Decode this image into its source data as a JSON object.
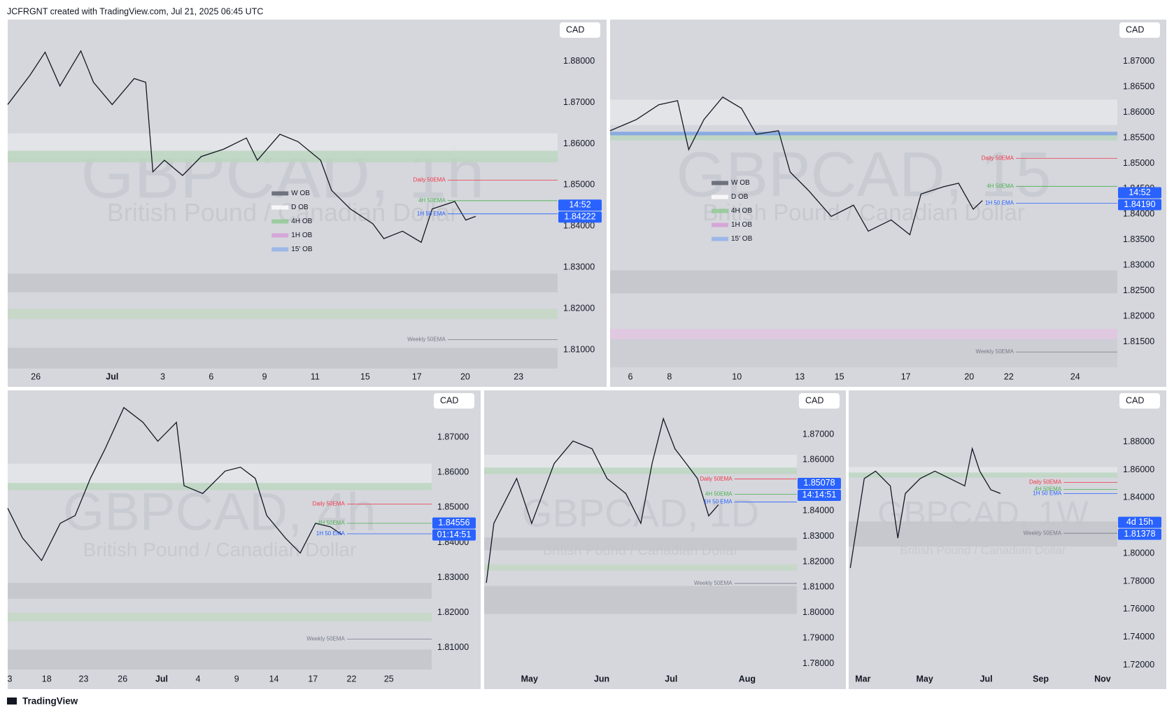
{
  "header": "JCFRGNT created with TradingView.com, Jul 21, 2025 06:45 UTC",
  "footer": "TradingView",
  "chart_data": [
    {
      "type": "line",
      "title": "GBPCAD, 1h",
      "subtitle": "British Pound / Canadian Dollar",
      "currency": "CAD",
      "xlim": [
        0,
        100
      ],
      "ylim": [
        1.8058,
        1.8901
      ],
      "xticks": [
        {
          "value": 5.1,
          "label": "26"
        },
        {
          "value": 19.0,
          "label": "Jul"
        },
        {
          "value": 28.2,
          "label": "3"
        },
        {
          "value": 37.0,
          "label": "6"
        },
        {
          "value": 46.7,
          "label": "9"
        },
        {
          "value": 55.9,
          "label": "11"
        },
        {
          "value": 65.0,
          "label": "15"
        },
        {
          "value": 74.4,
          "label": "17"
        },
        {
          "value": 83.2,
          "label": "20"
        },
        {
          "value": 92.9,
          "label": "23"
        }
      ],
      "yticks": [
        {
          "value": 1.81,
          "label": "1.81000"
        },
        {
          "value": 1.82,
          "label": "1.82000"
        },
        {
          "value": 1.83,
          "label": "1.83000"
        },
        {
          "value": 1.84,
          "label": "1.84000"
        },
        {
          "value": 1.85,
          "label": "1.85000"
        },
        {
          "value": 1.86,
          "label": "1.86000"
        },
        {
          "value": 1.87,
          "label": "1.87000"
        },
        {
          "value": 1.88,
          "label": "1.88000"
        }
      ],
      "series": [
        {
          "name": "GBPCAD",
          "color": "#131722",
          "x": [
            0,
            4.1,
            6.8,
            9.5,
            13.3,
            15.6,
            19.0,
            23.0,
            25.1,
            26.4,
            28.5,
            31.8,
            35.2,
            39.3,
            43.4,
            45.4,
            49.5,
            52.8,
            56.9,
            58.9,
            62.3,
            66.4,
            68.4,
            71.8,
            75.2,
            77.2,
            81.3,
            83.3,
            85.1
          ],
          "values": [
            1.8695,
            1.8767,
            1.8822,
            1.874,
            1.8825,
            1.8749,
            1.8695,
            1.8758,
            1.8749,
            1.8532,
            1.856,
            1.8523,
            1.8569,
            1.8587,
            1.8614,
            1.856,
            1.8623,
            1.8605,
            1.856,
            1.8487,
            1.8442,
            1.8406,
            1.837,
            1.8388,
            1.8361,
            1.8442,
            1.846,
            1.8415,
            1.8424
          ]
        }
      ],
      "zones": [
        {
          "from": 1.8565,
          "to": 1.8625,
          "color": "#e4e6ea"
        },
        {
          "from": 1.8555,
          "to": 1.8583,
          "color": "#bcd6bf"
        },
        {
          "from": 1.824,
          "to": 1.8285,
          "color": "#c3c5cb"
        },
        {
          "from": 1.8175,
          "to": 1.82,
          "color": "#c4d8c6"
        },
        {
          "from": 1.8055,
          "to": 1.8105,
          "color": "#c3c5cb"
        }
      ],
      "levels": [
        {
          "label": "Daily 50EMA",
          "value": 1.8512,
          "color": "#f23645"
        },
        {
          "label": "4H 50EMA",
          "value": 1.8462,
          "color": "#4caf50"
        },
        {
          "label": "1H 50 EMA",
          "value": 1.843,
          "color": "#2962ff"
        },
        {
          "label": "Weekly 50EMA",
          "value": 1.8125,
          "color": "#787b86"
        }
      ],
      "price_tag": {
        "value": 1.84222,
        "label": "1.84222"
      },
      "countdown": "14:52",
      "legend": [
        {
          "name": "W OB",
          "color": "#555a66"
        },
        {
          "name": "D OB",
          "color": "#ffffff"
        },
        {
          "name": "4H OB",
          "color": "#8cc98f"
        },
        {
          "name": "1H OB",
          "color": "#d69ad6"
        },
        {
          "name": "15' OB",
          "color": "#8fb0ea"
        }
      ]
    },
    {
      "type": "line",
      "title": "GBPCAD, 15",
      "subtitle": "British Pound / Canadian Dollar",
      "currency": "CAD",
      "xlim": [
        0,
        100
      ],
      "ylim": [
        1.81,
        1.8782
      ],
      "xticks": [
        {
          "value": 4.0,
          "label": "6"
        },
        {
          "value": 11.7,
          "label": "8"
        },
        {
          "value": 25.0,
          "label": "10"
        },
        {
          "value": 37.4,
          "label": "13"
        },
        {
          "value": 45.2,
          "label": "15"
        },
        {
          "value": 58.3,
          "label": "17"
        },
        {
          "value": 70.8,
          "label": "20"
        },
        {
          "value": 78.6,
          "label": "22"
        },
        {
          "value": 91.7,
          "label": "24"
        }
      ],
      "yticks": [
        {
          "value": 1.815,
          "label": "1.81500"
        },
        {
          "value": 1.82,
          "label": "1.82000"
        },
        {
          "value": 1.825,
          "label": "1.82500"
        },
        {
          "value": 1.83,
          "label": "1.83000"
        },
        {
          "value": 1.835,
          "label": "1.83500"
        },
        {
          "value": 1.84,
          "label": "1.84000"
        },
        {
          "value": 1.845,
          "label": "1.84500"
        },
        {
          "value": 1.85,
          "label": "1.85000"
        },
        {
          "value": 1.855,
          "label": "1.85500"
        },
        {
          "value": 1.86,
          "label": "1.86000"
        },
        {
          "value": 1.865,
          "label": "1.86500"
        },
        {
          "value": 1.87,
          "label": "1.87000"
        }
      ],
      "series": [
        {
          "name": "GBPCAD",
          "color": "#131722",
          "x": [
            0,
            5.2,
            9.6,
            13.3,
            15.5,
            18.5,
            22.2,
            25.9,
            28.8,
            33.2,
            35.5,
            39.1,
            43.6,
            48.0,
            50.9,
            55.4,
            59.1,
            61.3,
            65.7,
            68.7,
            71.6,
            73.4
          ],
          "values": [
            1.8564,
            1.8586,
            1.8615,
            1.8623,
            1.8527,
            1.8586,
            1.863,
            1.8608,
            1.8557,
            1.8564,
            1.8483,
            1.8447,
            1.8396,
            1.8418,
            1.8367,
            1.8389,
            1.836,
            1.844,
            1.8454,
            1.8461,
            1.841,
            1.8427
          ]
        }
      ],
      "zones": [
        {
          "from": 1.8575,
          "to": 1.8625,
          "color": "#e4e6ea"
        },
        {
          "from": 1.8545,
          "to": 1.856,
          "color": "#bcd6bf"
        },
        {
          "from": 1.8555,
          "to": 1.8562,
          "color": "#7fa3e6"
        },
        {
          "from": 1.8245,
          "to": 1.829,
          "color": "#c3c5cb"
        },
        {
          "from": 1.8155,
          "to": 1.8175,
          "color": "#e2c6e2"
        },
        {
          "from": 1.81,
          "to": 1.8155,
          "color": "#caccd2"
        }
      ],
      "levels": [
        {
          "label": "Daily 50EMA",
          "value": 1.851,
          "color": "#f23645"
        },
        {
          "label": "4H 50EMA",
          "value": 1.8455,
          "color": "#4caf50"
        },
        {
          "label": "1H 50 EMA",
          "value": 1.8422,
          "color": "#2962ff"
        },
        {
          "label": "Weekly 50EMA",
          "value": 1.813,
          "color": "#787b86"
        }
      ],
      "price_tag": {
        "value": 1.8419,
        "label": "1.84190"
      },
      "countdown": "14:52",
      "legend": [
        {
          "name": "W OB",
          "color": "#555a66"
        },
        {
          "name": "D OB",
          "color": "#ffffff"
        },
        {
          "name": "4H OB",
          "color": "#8cc98f"
        },
        {
          "name": "1H OB",
          "color": "#d69ad6"
        },
        {
          "name": "15' OB",
          "color": "#8fb0ea"
        }
      ]
    },
    {
      "type": "line",
      "title": "GBPCAD, 4h",
      "subtitle": "British Pound / Canadian Dollar",
      "currency": "CAD",
      "xlim": [
        0,
        100
      ],
      "ylim": [
        1.8038,
        1.8834
      ],
      "xticks": [
        {
          "value": 0.5,
          "label": "3"
        },
        {
          "value": 9.2,
          "label": "18"
        },
        {
          "value": 17.9,
          "label": "23"
        },
        {
          "value": 27.1,
          "label": "26"
        },
        {
          "value": 36.3,
          "label": "Jul"
        },
        {
          "value": 44.9,
          "label": "4"
        },
        {
          "value": 54.0,
          "label": "9"
        },
        {
          "value": 62.8,
          "label": "14"
        },
        {
          "value": 72.0,
          "label": "17"
        },
        {
          "value": 81.1,
          "label": "22"
        },
        {
          "value": 89.9,
          "label": "25"
        }
      ],
      "yticks": [
        {
          "value": 1.81,
          "label": "1.81000"
        },
        {
          "value": 1.82,
          "label": "1.82000"
        },
        {
          "value": 1.83,
          "label": "1.83000"
        },
        {
          "value": 1.84,
          "label": "1.84000"
        },
        {
          "value": 1.85,
          "label": "1.85000"
        },
        {
          "value": 1.86,
          "label": "1.86000"
        },
        {
          "value": 1.87,
          "label": "1.87000"
        }
      ],
      "series": [
        {
          "name": "GBPCAD",
          "color": "#131722",
          "x": [
            0,
            3.5,
            8.0,
            12.4,
            15.9,
            19.5,
            23.0,
            27.4,
            31.9,
            35.4,
            39.8,
            41.6,
            46.0,
            51.3,
            54.9,
            58.4,
            61.1,
            65.5,
            69.0,
            72.6,
            76.1,
            78.8
          ],
          "values": [
            1.8498,
            1.8413,
            1.8349,
            1.8455,
            1.8477,
            1.8583,
            1.8668,
            1.8785,
            1.8743,
            1.8689,
            1.8743,
            1.8562,
            1.854,
            1.8604,
            1.8615,
            1.8583,
            1.8477,
            1.8413,
            1.837,
            1.8455,
            1.8445,
            1.8423
          ]
        }
      ],
      "zones": [
        {
          "from": 1.8555,
          "to": 1.8625,
          "color": "#e4e6ea"
        },
        {
          "from": 1.855,
          "to": 1.857,
          "color": "#bcd6bf"
        },
        {
          "from": 1.824,
          "to": 1.8285,
          "color": "#c3c5cb"
        },
        {
          "from": 1.8175,
          "to": 1.82,
          "color": "#c4d8c6"
        },
        {
          "from": 1.8038,
          "to": 1.8095,
          "color": "#c3c5cb"
        }
      ],
      "levels": [
        {
          "label": "Daily 50EMA",
          "value": 1.851,
          "color": "#f23645"
        },
        {
          "label": "4H 50EMA",
          "value": 1.8455,
          "color": "#4caf50"
        },
        {
          "label": "1H 50 EMA",
          "value": 1.8425,
          "color": "#2962ff"
        },
        {
          "label": "Weekly 50EMA",
          "value": 1.8125,
          "color": "#787b86"
        }
      ],
      "price_tag": {
        "value": 1.84556,
        "label": "1.84556"
      },
      "countdown": "01:14:51"
    },
    {
      "type": "line",
      "title": "GBPCAD, 1D",
      "subtitle": "British Pound / Canadian Dollar",
      "currency": "CAD",
      "xlim": [
        0,
        100
      ],
      "ylim": [
        1.7777,
        1.8873
      ],
      "xticks": [
        {
          "value": 14.5,
          "label": "May"
        },
        {
          "value": 37.6,
          "label": "Jun"
        },
        {
          "value": 59.8,
          "label": "Jul"
        },
        {
          "value": 84.1,
          "label": "Aug"
        }
      ],
      "yticks": [
        {
          "value": 1.78,
          "label": "1.78000"
        },
        {
          "value": 1.79,
          "label": "1.79000"
        },
        {
          "value": 1.8,
          "label": "1.80000"
        },
        {
          "value": 1.81,
          "label": "1.81000"
        },
        {
          "value": 1.82,
          "label": "1.82000"
        },
        {
          "value": 1.83,
          "label": "1.83000"
        },
        {
          "value": 1.84,
          "label": "1.84000"
        },
        {
          "value": 1.85,
          "label": "1.85000"
        },
        {
          "value": 1.86,
          "label": "1.86000"
        },
        {
          "value": 1.87,
          "label": "1.87000"
        }
      ],
      "series": [
        {
          "name": "GBPCAD",
          "color": "#131722",
          "x": [
            0.7,
            3.1,
            10.4,
            15.2,
            22.4,
            28.4,
            34.5,
            39.3,
            45.3,
            50.1,
            53.7,
            57.3,
            61.0,
            64.6,
            68.2,
            71.8,
            74.9
          ],
          "values": [
            1.8117,
            1.8351,
            1.8527,
            1.8351,
            1.8586,
            1.8674,
            1.8644,
            1.8527,
            1.8468,
            1.8351,
            1.8586,
            1.8762,
            1.8644,
            1.8586,
            1.8527,
            1.838,
            1.8424
          ]
        }
      ],
      "zones": [
        {
          "from": 1.8555,
          "to": 1.862,
          "color": "#e4e6ea"
        },
        {
          "from": 1.8545,
          "to": 1.857,
          "color": "#bcd6bf"
        },
        {
          "from": 1.8245,
          "to": 1.8295,
          "color": "#c3c5cb"
        },
        {
          "from": 1.8165,
          "to": 1.819,
          "color": "#c4d8c6"
        },
        {
          "from": 1.7995,
          "to": 1.8105,
          "color": "#c3c5cb"
        }
      ],
      "levels": [
        {
          "label": "Daily 50EMA",
          "value": 1.8525,
          "color": "#f23645"
        },
        {
          "label": "4H 50EMA",
          "value": 1.8465,
          "color": "#4caf50"
        },
        {
          "label": "1H 50 EMA",
          "value": 1.8435,
          "color": "#2962ff"
        },
        {
          "label": "Weekly 50EMA",
          "value": 1.8115,
          "color": "#787b86"
        }
      ],
      "price_tag": {
        "value": 1.85078,
        "label": "1.85078"
      },
      "countdown": "14:14:51"
    },
    {
      "type": "line",
      "title": "GBPCAD, 1W",
      "subtitle": "British Pound / Canadian Dollar",
      "currency": "CAD",
      "xlim": [
        0,
        100
      ],
      "ylim": [
        1.7168,
        1.9169
      ],
      "xticks": [
        {
          "value": 5.3,
          "label": "Mar"
        },
        {
          "value": 28.3,
          "label": "May"
        },
        {
          "value": 51.2,
          "label": "Jul"
        },
        {
          "value": 71.5,
          "label": "Sep"
        },
        {
          "value": 94.5,
          "label": "Nov"
        }
      ],
      "yticks": [
        {
          "value": 1.72,
          "label": "1.72000"
        },
        {
          "value": 1.74,
          "label": "1.74000"
        },
        {
          "value": 1.76,
          "label": "1.76000"
        },
        {
          "value": 1.78,
          "label": "1.78000"
        },
        {
          "value": 1.8,
          "label": "1.80000"
        },
        {
          "value": 1.82,
          "label": "1.82000"
        },
        {
          "value": 1.84,
          "label": "1.84000"
        },
        {
          "value": 1.86,
          "label": "1.86000"
        },
        {
          "value": 1.88,
          "label": "1.88000"
        }
      ],
      "series": [
        {
          "name": "GBPCAD",
          "color": "#131722",
          "x": [
            0.6,
            5.8,
            10.0,
            15.5,
            18.3,
            21.1,
            26.6,
            32.1,
            37.7,
            43.2,
            46.0,
            48.8,
            52.9,
            56.5
          ],
          "values": [
            1.7896,
            1.8537,
            1.859,
            1.8484,
            1.811,
            1.843,
            1.8537,
            1.859,
            1.8537,
            1.8484,
            1.8752,
            1.859,
            1.8457,
            1.843
          ]
        }
      ],
      "zones": [
        {
          "from": 1.855,
          "to": 1.862,
          "color": "#e4e6ea"
        },
        {
          "from": 1.8545,
          "to": 1.858,
          "color": "#bcd6bf"
        },
        {
          "from": 1.805,
          "to": 1.823,
          "color": "#c3c5cb"
        }
      ],
      "levels": [
        {
          "label": "Daily 50EMA",
          "value": 1.851,
          "color": "#f23645"
        },
        {
          "label": "4H 50EMA",
          "value": 1.846,
          "color": "#4caf50"
        },
        {
          "label": "1H 50 EMA",
          "value": 1.843,
          "color": "#2962ff"
        },
        {
          "label": "Weekly 50EMA",
          "value": 1.8145,
          "color": "#787b86"
        }
      ],
      "price_tag": {
        "value": 1.81378,
        "label": "1.81378"
      },
      "countdown": "4d 15h"
    }
  ]
}
